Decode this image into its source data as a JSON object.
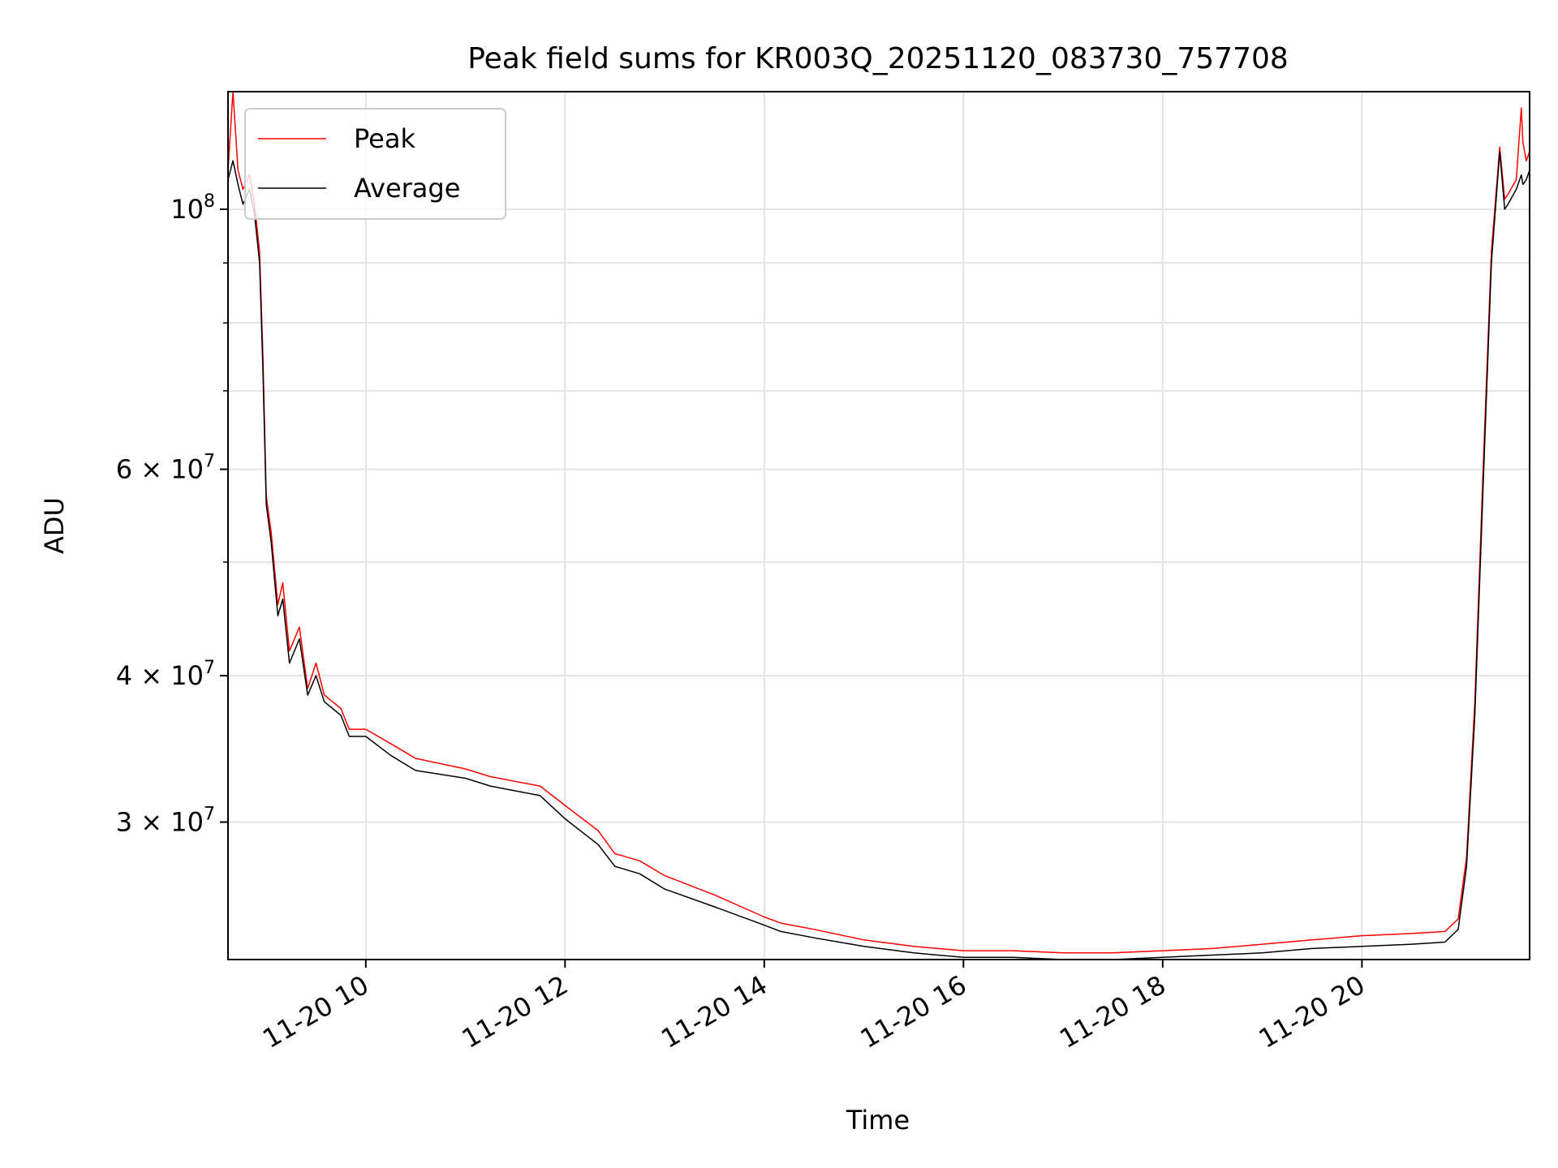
{
  "chart_data": {
    "type": "line",
    "title": "Peak field sums for KR003Q_20251120_083730_757708",
    "xlabel": "Time",
    "ylabel": "ADU",
    "yscale": "log",
    "grid": true,
    "legend_position": "upper-left",
    "xlim": [
      "11-20 08:37",
      "11-20 21:41"
    ],
    "ylim": [
      22900000,
      126000000
    ],
    "x_ticks": [
      {
        "value": "11-20 10:00",
        "label": "11-20 10"
      },
      {
        "value": "11-20 12:00",
        "label": "11-20 12"
      },
      {
        "value": "11-20 14:00",
        "label": "11-20 14"
      },
      {
        "value": "11-20 16:00",
        "label": "11-20 16"
      },
      {
        "value": "11-20 18:00",
        "label": "11-20 18"
      },
      {
        "value": "11-20 20:00",
        "label": "11-20 20"
      }
    ],
    "y_ticks": [
      {
        "value": 30000000,
        "label_base": "3 × 10",
        "label_exp": "7"
      },
      {
        "value": 40000000,
        "label_base": "4 × 10",
        "label_exp": "7"
      },
      {
        "value": 60000000,
        "label_base": "6 × 10",
        "label_exp": "7"
      },
      {
        "value": 100000000,
        "label_base": "10",
        "label_exp": "8"
      }
    ],
    "y_minor_grid": [
      50000000,
      70000000,
      80000000,
      90000000
    ],
    "series": [
      {
        "name": "Peak",
        "color": "#ff0000",
        "x": [
          "11-20 08:37",
          "11-20 08:40",
          "11-20 08:43",
          "11-20 08:46",
          "11-20 08:50",
          "11-20 08:53",
          "11-20 08:56",
          "11-20 08:58",
          "11-20 09:00",
          "11-20 09:03",
          "11-20 09:07",
          "11-20 09:10",
          "11-20 09:14",
          "11-20 09:20",
          "11-20 09:25",
          "11-20 09:30",
          "11-20 09:35",
          "11-20 09:40",
          "11-20 09:45",
          "11-20 09:50",
          "11-20 10:00",
          "11-20 10:15",
          "11-20 10:30",
          "11-20 11:00",
          "11-20 11:15",
          "11-20 11:30",
          "11-20 11:45",
          "11-20 12:00",
          "11-20 12:20",
          "11-20 12:30",
          "11-20 12:45",
          "11-20 13:00",
          "11-20 13:30",
          "11-20 14:00",
          "11-20 14:10",
          "11-20 14:30",
          "11-20 15:00",
          "11-20 15:30",
          "11-20 16:00",
          "11-20 16:30",
          "11-20 17:00",
          "11-20 17:30",
          "11-20 18:00",
          "11-20 18:30",
          "11-20 19:00",
          "11-20 19:30",
          "11-20 20:00",
          "11-20 20:30",
          "11-20 20:50",
          "11-20 20:58",
          "11-20 21:03",
          "11-20 21:08",
          "11-20 21:13",
          "11-20 21:18",
          "11-20 21:23",
          "11-20 21:26",
          "11-20 21:28",
          "11-20 21:33",
          "11-20 21:36",
          "11-20 21:37",
          "11-20 21:39",
          "11-20 21:41"
        ],
        "y": [
          108000000,
          126000000,
          108000000,
          104000000,
          107000000,
          101000000,
          92000000,
          75000000,
          57000000,
          53000000,
          46000000,
          48000000,
          42000000,
          44000000,
          39000000,
          41000000,
          38500000,
          38000000,
          37500000,
          36000000,
          36000000,
          35000000,
          34000000,
          33300000,
          32800000,
          32500000,
          32200000,
          31000000,
          29500000,
          28200000,
          27800000,
          27000000,
          26000000,
          24900000,
          24600000,
          24300000,
          23800000,
          23500000,
          23300000,
          23300000,
          23200000,
          23200000,
          23300000,
          23400000,
          23600000,
          23800000,
          24000000,
          24100000,
          24200000,
          24800000,
          28000000,
          38000000,
          60000000,
          92000000,
          113000000,
          102000000,
          103000000,
          106000000,
          122000000,
          114000000,
          110000000,
          112000000
        ]
      },
      {
        "name": "Average",
        "color": "#000000",
        "x": [
          "11-20 08:37",
          "11-20 08:40",
          "11-20 08:43",
          "11-20 08:46",
          "11-20 08:50",
          "11-20 08:53",
          "11-20 08:56",
          "11-20 08:58",
          "11-20 09:00",
          "11-20 09:03",
          "11-20 09:07",
          "11-20 09:10",
          "11-20 09:14",
          "11-20 09:20",
          "11-20 09:25",
          "11-20 09:30",
          "11-20 09:35",
          "11-20 09:40",
          "11-20 09:45",
          "11-20 09:50",
          "11-20 10:00",
          "11-20 10:15",
          "11-20 10:30",
          "11-20 11:00",
          "11-20 11:15",
          "11-20 11:30",
          "11-20 11:45",
          "11-20 12:00",
          "11-20 12:20",
          "11-20 12:30",
          "11-20 12:45",
          "11-20 13:00",
          "11-20 13:30",
          "11-20 14:00",
          "11-20 14:10",
          "11-20 14:30",
          "11-20 15:00",
          "11-20 15:30",
          "11-20 16:00",
          "11-20 16:30",
          "11-20 17:00",
          "11-20 17:30",
          "11-20 18:00",
          "11-20 18:30",
          "11-20 19:00",
          "11-20 19:30",
          "11-20 20:00",
          "11-20 20:30",
          "11-20 20:50",
          "11-20 20:58",
          "11-20 21:03",
          "11-20 21:08",
          "11-20 21:13",
          "11-20 21:18",
          "11-20 21:23",
          "11-20 21:26",
          "11-20 21:28",
          "11-20 21:33",
          "11-20 21:36",
          "11-20 21:37",
          "11-20 21:39",
          "11-20 21:41"
        ],
        "y": [
          106000000,
          110000000,
          105000000,
          101000000,
          104000000,
          99000000,
          90000000,
          73000000,
          56000000,
          52000000,
          45000000,
          46500000,
          41000000,
          43000000,
          38500000,
          40000000,
          38000000,
          37500000,
          37000000,
          35500000,
          35500000,
          34200000,
          33200000,
          32700000,
          32200000,
          31900000,
          31600000,
          30200000,
          28700000,
          27500000,
          27100000,
          26300000,
          25400000,
          24500000,
          24200000,
          23900000,
          23500000,
          23200000,
          23000000,
          23000000,
          22900000,
          22900000,
          23000000,
          23100000,
          23200000,
          23400000,
          23500000,
          23600000,
          23700000,
          24300000,
          27500000,
          37000000,
          58000000,
          90000000,
          112000000,
          100000000,
          101000000,
          104000000,
          107000000,
          105000000,
          106000000,
          108000000
        ]
      }
    ]
  }
}
